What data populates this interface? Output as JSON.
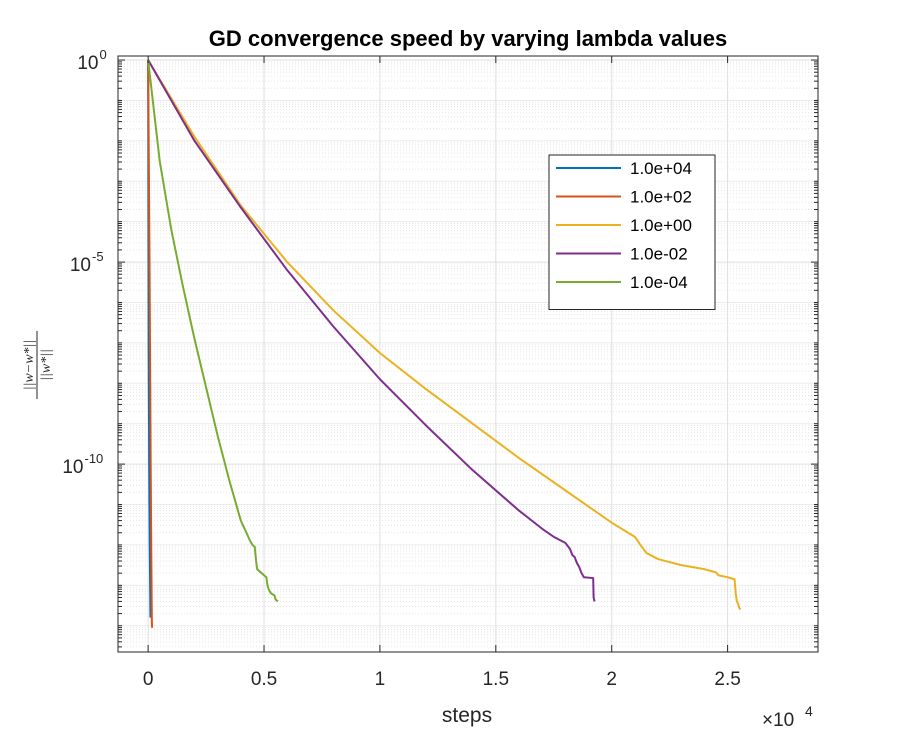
{
  "chart_data": {
    "type": "line",
    "title": "GD convergence speed by varying lambda values",
    "xlabel": "steps",
    "ylabel": {
      "numerator": "||w−w*||",
      "denominator": "||w*||"
    },
    "x_multiplier": "×10",
    "x_multiplier_exp": "4",
    "xlim": [
      -1300,
      28900
    ],
    "ylim_log10": [
      -14.65,
      0.1
    ],
    "yscale": "log",
    "grid": true,
    "x_ticks": [
      0,
      5000,
      10000,
      15000,
      20000,
      25000
    ],
    "x_tick_labels": [
      "0",
      "0.5",
      "1",
      "1.5",
      "2",
      "2.5"
    ],
    "y_ticks_log10": [
      0,
      -5,
      -10
    ],
    "y_tick_base": "10",
    "y_tick_exps": [
      "0",
      "-5",
      "-10"
    ],
    "legend_position": "upper-right",
    "series": [
      {
        "name": "1.0e+04",
        "color": "#0072BD",
        "points": [
          [
            0,
            0
          ],
          [
            20,
            -7
          ],
          [
            45,
            -10
          ],
          [
            70,
            -12
          ],
          [
            100,
            -13.8
          ]
        ]
      },
      {
        "name": "1.0e+02",
        "color": "#D95319",
        "points": [
          [
            0,
            0
          ],
          [
            60,
            -5
          ],
          [
            110,
            -10
          ],
          [
            140,
            -12.5
          ],
          [
            160,
            -13.9
          ],
          [
            170,
            -14.05
          ]
        ]
      },
      {
        "name": "1.0e+00",
        "color": "#EDB120",
        "points": [
          [
            0,
            0
          ],
          [
            2000,
            -1.9
          ],
          [
            4000,
            -3.6
          ],
          [
            6000,
            -5.0
          ],
          [
            8000,
            -6.2
          ],
          [
            10000,
            -7.25
          ],
          [
            12000,
            -8.15
          ],
          [
            14000,
            -9.0
          ],
          [
            16000,
            -9.85
          ],
          [
            18000,
            -10.65
          ],
          [
            20000,
            -11.45
          ],
          [
            21000,
            -11.8
          ],
          [
            21300,
            -12.05
          ],
          [
            21500,
            -12.2
          ],
          [
            22000,
            -12.35
          ],
          [
            23000,
            -12.5
          ],
          [
            24000,
            -12.6
          ],
          [
            24500,
            -12.68
          ],
          [
            24600,
            -12.75
          ],
          [
            25000,
            -12.8
          ],
          [
            25300,
            -12.85
          ],
          [
            25350,
            -13.2
          ],
          [
            25400,
            -13.4
          ],
          [
            25450,
            -13.45
          ],
          [
            25500,
            -13.55
          ],
          [
            25550,
            -13.6
          ]
        ]
      },
      {
        "name": "1.0e-02",
        "color": "#7E2F8E",
        "points": [
          [
            0,
            0
          ],
          [
            2000,
            -2.0
          ],
          [
            4000,
            -3.65
          ],
          [
            6000,
            -5.2
          ],
          [
            8000,
            -6.6
          ],
          [
            10000,
            -7.9
          ],
          [
            12000,
            -9.05
          ],
          [
            14000,
            -10.15
          ],
          [
            16000,
            -11.15
          ],
          [
            17000,
            -11.6
          ],
          [
            17500,
            -11.8
          ],
          [
            18000,
            -11.95
          ],
          [
            18200,
            -12.1
          ],
          [
            18300,
            -12.25
          ],
          [
            18400,
            -12.3
          ],
          [
            18500,
            -12.45
          ],
          [
            18600,
            -12.55
          ],
          [
            18700,
            -12.7
          ],
          [
            18800,
            -12.8
          ],
          [
            19200,
            -12.82
          ],
          [
            19220,
            -13.3
          ],
          [
            19240,
            -13.35
          ],
          [
            19260,
            -13.4
          ]
        ]
      },
      {
        "name": "1.0e-04",
        "color": "#77AC30",
        "points": [
          [
            0,
            0
          ],
          [
            500,
            -2.5
          ],
          [
            1000,
            -4.2
          ],
          [
            1500,
            -5.6
          ],
          [
            2000,
            -6.9
          ],
          [
            2500,
            -8.1
          ],
          [
            3000,
            -9.3
          ],
          [
            3500,
            -10.4
          ],
          [
            4000,
            -11.4
          ],
          [
            4400,
            -11.9
          ],
          [
            4500,
            -12.0
          ],
          [
            4600,
            -12.05
          ],
          [
            4650,
            -12.35
          ],
          [
            4700,
            -12.6
          ],
          [
            4800,
            -12.65
          ],
          [
            5000,
            -12.75
          ],
          [
            5100,
            -12.8
          ],
          [
            5150,
            -13.0
          ],
          [
            5200,
            -13.1
          ],
          [
            5300,
            -13.2
          ],
          [
            5450,
            -13.25
          ],
          [
            5500,
            -13.35
          ],
          [
            5600,
            -13.4
          ]
        ]
      }
    ]
  }
}
